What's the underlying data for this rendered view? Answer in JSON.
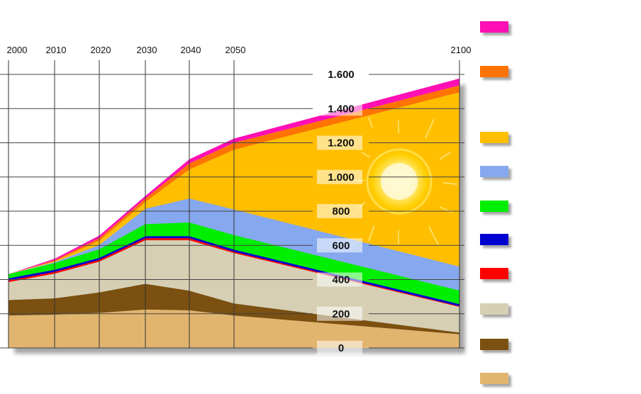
{
  "chart_data": {
    "type": "area",
    "stacked": true,
    "x": [
      2000,
      2010,
      2020,
      2030,
      2040,
      2050,
      2100
    ],
    "x_tick_labels": [
      "2000",
      "2010",
      "2020",
      "2030",
      "2040",
      "2050",
      "2100"
    ],
    "y_tick_labels": [
      "0",
      "200",
      "400",
      "600",
      "800",
      "1.000",
      "1.200",
      "1.400",
      "1.600"
    ],
    "y_ticks": [
      0,
      200,
      400,
      600,
      800,
      1000,
      1200,
      1400,
      1600
    ],
    "ylim": [
      0,
      1600
    ],
    "grid": true,
    "legend_position": "right",
    "decoration": "sun-icon",
    "series": [
      {
        "color": "#e2b56f",
        "values": [
          190,
          195,
          205,
          225,
          220,
          190,
          80
        ]
      },
      {
        "color": "#7b5010",
        "values": [
          90,
          95,
          120,
          150,
          115,
          70,
          10
        ]
      },
      {
        "color": "#d6cfb4",
        "values": [
          105,
          145,
          180,
          255,
          295,
          295,
          150
        ]
      },
      {
        "color": "#ff0000",
        "values": [
          10,
          10,
          10,
          12,
          12,
          8,
          4
        ]
      },
      {
        "color": "#0000d0",
        "values": [
          12,
          12,
          12,
          12,
          12,
          12,
          12
        ]
      },
      {
        "color": "#00ee00",
        "values": [
          25,
          40,
          50,
          70,
          80,
          85,
          80
        ]
      },
      {
        "color": "#86a8ee",
        "values": [
          0,
          5,
          25,
          90,
          140,
          150,
          140
        ]
      },
      {
        "color": "#ffbf00",
        "values": [
          0,
          5,
          25,
          40,
          170,
          350,
          1020
        ]
      },
      {
        "color": "#ff7300",
        "values": [
          0,
          5,
          15,
          20,
          35,
          40,
          40
        ]
      },
      {
        "color": "#ff0fb4",
        "values": [
          0,
          10,
          15,
          15,
          25,
          25,
          40
        ]
      }
    ]
  }
}
